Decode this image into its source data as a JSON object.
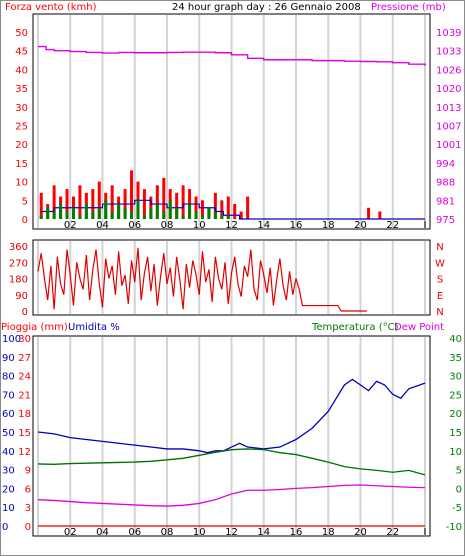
{
  "header": {
    "title": "24 hour graph day : 26 Gennaio 2008",
    "left_label": "Forza vento (kmh)",
    "right_label": "Pressione (mb)"
  },
  "bottom_header": {
    "rain_label": "Pioggia (mm)",
    "humidity_label": "Umidita %",
    "temp_label": "Temperatura (°C)",
    "dewpoint_label": "Dew Point"
  },
  "colors": {
    "background": "#ffffff",
    "plot_background": "#ffffff",
    "grid": "#d3d3d3",
    "wind_gust": "#ff0000",
    "wind_avg": "#008000",
    "wind_blue": "#0000c0",
    "pressure": "#e000e0",
    "direction": "#e00000",
    "temperature": "#0000c0",
    "humidity": "#007000",
    "dewpoint": "#e000e0",
    "rain": "#e00000",
    "rain_axis": "#ff0000",
    "humidity_axis": "#0000c0",
    "temp_axis": "#008000"
  },
  "chart_data": [
    {
      "type": "line",
      "panel": "wind_pressure",
      "xlabel": "",
      "x_tick_labels": [
        "02",
        "04",
        "06",
        "08",
        "10",
        "12",
        "14",
        "16",
        "18",
        "20",
        "22",
        "I"
      ],
      "ylabel_left": "Forza vento (kmh)",
      "ylim_left": [
        0,
        50
      ],
      "y_ticks_left": [
        "0",
        "5",
        "10",
        "15",
        "20",
        "25",
        "30",
        "35",
        "40",
        "45",
        "50"
      ],
      "ylabel_right": "Pressione (mb)",
      "ylim_right": [
        975,
        1039
      ],
      "y_ticks_right": [
        "975",
        "981",
        "988",
        "994",
        "1001",
        "1007",
        "1013",
        "1020",
        "1026",
        "1033",
        "1039"
      ],
      "grid": true,
      "series": [
        {
          "name": "Pressione (mb)",
          "axis": "right",
          "color": "#e000e0",
          "x": [
            0,
            0.5,
            1,
            2,
            3,
            4,
            5,
            6,
            7,
            8,
            9,
            10,
            11,
            12,
            13,
            14,
            15,
            16,
            17,
            18,
            19,
            20,
            21,
            22,
            23,
            24
          ],
          "values": [
            1034,
            1033,
            1032.6,
            1032.3,
            1032,
            1031.8,
            1032,
            1031.9,
            1031.9,
            1032,
            1032.1,
            1032.1,
            1031.9,
            1031.2,
            1030,
            1029.5,
            1029.5,
            1029.5,
            1029.2,
            1029.2,
            1029,
            1028.9,
            1028.8,
            1028.5,
            1028,
            1027.5
          ]
        },
        {
          "name": "",
          "axis": "left",
          "color": "#ff0000",
          "style": "gust",
          "x": [
            0.2,
            0.6,
            1.0,
            1.4,
            1.8,
            2.2,
            2.6,
            3.0,
            3.4,
            3.8,
            4.2,
            4.6,
            5.0,
            5.4,
            5.8,
            6.2,
            6.6,
            7.0,
            7.4,
            7.8,
            8.2,
            8.6,
            9.0,
            9.4,
            9.8,
            10.2,
            10.6,
            11.0,
            11.4,
            11.8,
            12.2,
            12.6,
            13.0,
            20.5,
            21.2
          ],
          "values": [
            7,
            4,
            9,
            6,
            8,
            6,
            9,
            7,
            8,
            10,
            7,
            9,
            6,
            8,
            13,
            10,
            8,
            6,
            9,
            11,
            8,
            7,
            9,
            8,
            6,
            5,
            3,
            7,
            5,
            6,
            4,
            2,
            6,
            3,
            2
          ]
        },
        {
          "name": "",
          "axis": "left",
          "color": "#0000c0",
          "style": "line",
          "x": [
            0.2,
            1,
            2,
            3,
            4,
            5,
            6,
            7,
            8,
            9,
            10,
            11,
            11.5,
            12.5,
            24
          ],
          "values": [
            2,
            3,
            3,
            3,
            4,
            4,
            5,
            4,
            3,
            4,
            3,
            2,
            1,
            0,
            0
          ]
        },
        {
          "name": "",
          "axis": "left",
          "color": "#008000",
          "style": "avg",
          "x": [
            0.2,
            0.6,
            1.0,
            1.4,
            1.8,
            2.2,
            2.6,
            3.0,
            3.4,
            3.8,
            4.2,
            4.6,
            5.0,
            5.4,
            5.8,
            6.2,
            6.6,
            7.0,
            7.4,
            7.8,
            8.2,
            8.6,
            9.0,
            9.4,
            9.8,
            10.2,
            10.6,
            11.0,
            11.4,
            11.8,
            12.2
          ],
          "values": [
            1,
            3,
            2,
            4,
            2,
            3,
            1,
            4,
            2,
            3,
            5,
            2,
            4,
            3,
            2,
            5,
            1,
            3,
            4,
            2,
            5,
            3,
            1,
            4,
            2,
            1,
            3,
            2,
            1,
            1,
            0
          ]
        }
      ]
    },
    {
      "type": "line",
      "panel": "wind_direction",
      "xlabel": "",
      "ylabel_left": "",
      "ylim_left": [
        0,
        360
      ],
      "y_ticks_left": [
        "0",
        "90",
        "180",
        "270",
        "360"
      ],
      "y_ticks_right": [
        "N",
        "E",
        "S",
        "W",
        "N"
      ],
      "grid": true,
      "series": [
        {
          "name": "",
          "color": "#e00000",
          "values": [
            220,
            320,
            180,
            60,
            250,
            10,
            300,
            150,
            90,
            340,
            200,
            30,
            270,
            180,
            120,
            310,
            60,
            230,
            340,
            150,
            20,
            290,
            180,
            250,
            90,
            330,
            140,
            200,
            40,
            280,
            160,
            350,
            60,
            210,
            300,
            110,
            260,
            30,
            190,
            320,
            150,
            240,
            80,
            300,
            170,
            10,
            260,
            130,
            280,
            200,
            90,
            330,
            160,
            230,
            50,
            300,
            180,
            120,
            270,
            40,
            210,
            300,
            150,
            80,
            250,
            190,
            340,
            120,
            60,
            280,
            200,
            100,
            240,
            30,
            170,
            290,
            140,
            60,
            220,
            90,
            180,
            120,
            30,
            30,
            30,
            30,
            30,
            30,
            30,
            30,
            30,
            30,
            30,
            30,
            0,
            0,
            0,
            0,
            0,
            0,
            0,
            0,
            0
          ],
          "x_step_hours": 0.2
        }
      ]
    },
    {
      "type": "line",
      "panel": "temp_humidity",
      "xlabel": "",
      "x_tick_labels": [
        "02",
        "04",
        "06",
        "08",
        "10",
        "12",
        "14",
        "16",
        "18",
        "20",
        "22",
        "I"
      ],
      "ylabel_left": "Pioggia (mm)",
      "ylim_left": [
        0,
        100
      ],
      "y_ticks_left_rain": [
        "0",
        "3",
        "6",
        "9",
        "12",
        "15",
        "18",
        "21",
        "24",
        "27",
        "30"
      ],
      "y_ticks_left_humidity": [
        "0",
        "10",
        "20",
        "30",
        "40",
        "50",
        "60",
        "70",
        "80",
        "90",
        "100"
      ],
      "ylabel_right": "Temperatura (°C)",
      "ylim_right": [
        -10,
        40
      ],
      "y_ticks_right": [
        "-10",
        "-5",
        "0",
        "5",
        "10",
        "15",
        "20",
        "25",
        "30",
        "35",
        "40"
      ],
      "grid": true,
      "series": [
        {
          "name": "Umidita %",
          "axis": "left",
          "color": "#0000c0",
          "x": [
            0,
            1,
            2,
            3,
            4,
            5,
            6,
            7,
            8,
            9,
            10,
            10.5,
            11,
            11.5,
            12,
            12.5,
            13,
            14,
            15,
            16,
            17,
            18,
            18.5,
            19,
            19.5,
            20,
            20.5,
            21,
            21.5,
            22,
            22.5,
            23,
            24
          ],
          "values": [
            50,
            49,
            47,
            46,
            45,
            44,
            43,
            42,
            41,
            41,
            40,
            39,
            40,
            40,
            42,
            44,
            42,
            41,
            42,
            46,
            52,
            61,
            68,
            75,
            78,
            75,
            72,
            77,
            75,
            70,
            68,
            73,
            76
          ]
        },
        {
          "name": "Temperatura (°C)",
          "axis": "right",
          "color": "#007000",
          "x": [
            0,
            1,
            2,
            3,
            4,
            5,
            6,
            7,
            8,
            9,
            10,
            11,
            12,
            13,
            14,
            15,
            16,
            17,
            18,
            19,
            20,
            21,
            22,
            23,
            24
          ],
          "values": [
            6.5,
            6.4,
            6.6,
            6.7,
            6.8,
            6.9,
            7.0,
            7.2,
            7.6,
            8.0,
            8.8,
            9.6,
            10.3,
            10.5,
            10.3,
            9.5,
            9.0,
            8.0,
            7.0,
            5.8,
            5.2,
            4.8,
            4.3,
            4.8,
            3.6
          ]
        },
        {
          "name": "Dew Point",
          "axis": "right",
          "color": "#e000e0",
          "x": [
            0,
            1,
            2,
            3,
            4,
            5,
            6,
            7,
            8,
            9,
            10,
            11,
            12,
            13,
            14,
            15,
            16,
            17,
            18,
            19,
            20,
            21,
            22,
            23,
            24
          ],
          "values": [
            -3,
            -3.2,
            -3.5,
            -3.8,
            -4.0,
            -4.2,
            -4.4,
            -4.6,
            -4.7,
            -4.5,
            -4.0,
            -3.0,
            -1.5,
            -0.5,
            -0.5,
            -0.3,
            0,
            0.2,
            0.5,
            0.8,
            0.9,
            0.7,
            0.5,
            0.3,
            0.2
          ]
        },
        {
          "name": "Pioggia (mm)",
          "axis": "left",
          "color": "#e00000",
          "x": [
            0,
            24
          ],
          "values": [
            0,
            0
          ]
        }
      ]
    }
  ]
}
